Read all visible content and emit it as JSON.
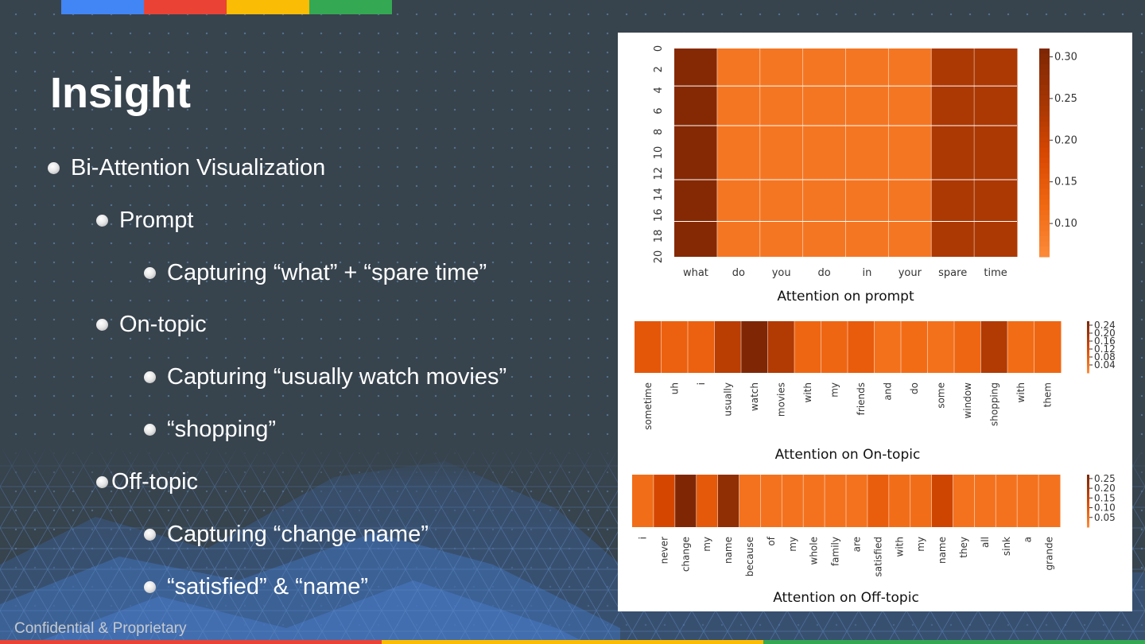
{
  "slide": {
    "title": "Insight",
    "footer": "Confidential & Proprietary",
    "bullets": [
      {
        "level": 1,
        "text": "Bi-Attention Visualization"
      },
      {
        "level": 2,
        "text": "Prompt"
      },
      {
        "level": 3,
        "text": "Capturing “what” + “spare time”"
      },
      {
        "level": 2,
        "text": "On-topic"
      },
      {
        "level": 3,
        "text": "Capturing “usually watch movies”"
      },
      {
        "level": 3,
        "text": "“shopping”"
      },
      {
        "level": 2,
        "text": "Off-topic"
      },
      {
        "level": 3,
        "text": "Capturing “change name”"
      },
      {
        "level": 3,
        "text": "“satisfied” & “name”"
      }
    ],
    "colors": {
      "background": "#37434d",
      "brand_blue": "#4285f4",
      "brand_red": "#ea4335",
      "brand_yellow": "#fbbc05",
      "brand_green": "#34a853"
    }
  },
  "chart_data": [
    {
      "type": "heatmap",
      "title": "Attention on prompt",
      "x": [
        "what",
        "do",
        "you",
        "do",
        "in",
        "your",
        "spare",
        "time"
      ],
      "y_ticks": [
        "0",
        "2",
        "4",
        "6",
        "8",
        "10",
        "12",
        "14",
        "16",
        "18",
        "20"
      ],
      "colorbar_ticks": [
        "0.30",
        "0.25",
        "0.20",
        "0.15",
        "0.10"
      ],
      "colorbar_range": [
        0.06,
        0.31
      ],
      "values": [
        0.3,
        0.1,
        0.1,
        0.1,
        0.1,
        0.1,
        0.24,
        0.24
      ]
    },
    {
      "type": "heatmap",
      "title": "Attention on On-topic",
      "x": [
        "sometime",
        "uh",
        "i",
        "usually",
        "watch",
        "movies",
        "with",
        "my",
        "friends",
        "and",
        "do",
        "some",
        "window",
        "shopping",
        "with",
        "them"
      ],
      "colorbar_ticks": [
        "0.24",
        "0.20",
        "0.16",
        "0.12",
        "0.08",
        "0.04"
      ],
      "colorbar_range": [
        0.0,
        0.26
      ],
      "values": [
        0.1,
        0.08,
        0.08,
        0.17,
        0.26,
        0.18,
        0.07,
        0.07,
        0.09,
        0.05,
        0.06,
        0.05,
        0.07,
        0.18,
        0.06,
        0.07
      ]
    },
    {
      "type": "heatmap",
      "title": "Attention on Off-topic",
      "x": [
        "i",
        "never",
        "change",
        "my",
        "name",
        "because",
        "of",
        "my",
        "whole",
        "family",
        "are",
        "satisfied",
        "with",
        "my",
        "name",
        "they",
        "all",
        "sink",
        "a",
        "grande"
      ],
      "colorbar_ticks": [
        "0.25",
        "0.20",
        "0.15",
        "0.10",
        "0.05"
      ],
      "colorbar_range": [
        0.0,
        0.27
      ],
      "values": [
        0.06,
        0.14,
        0.27,
        0.1,
        0.24,
        0.05,
        0.05,
        0.05,
        0.05,
        0.05,
        0.05,
        0.09,
        0.06,
        0.06,
        0.15,
        0.05,
        0.05,
        0.05,
        0.05,
        0.05
      ]
    }
  ]
}
